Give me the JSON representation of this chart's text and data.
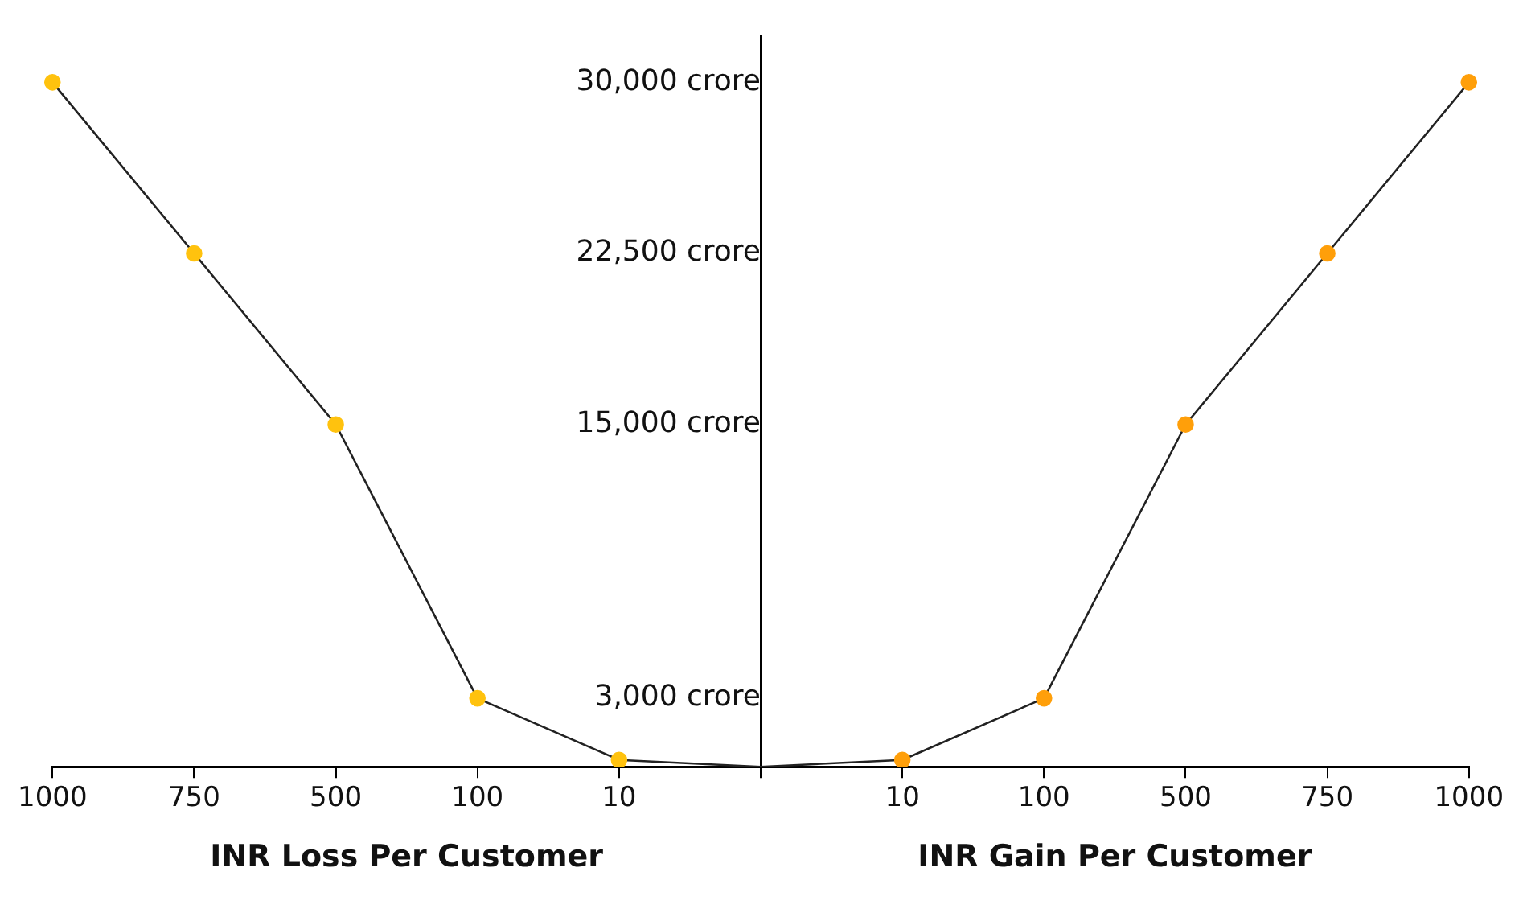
{
  "chart_data": {
    "type": "line",
    "categories": [
      "1000",
      "750",
      "500",
      "100",
      "10",
      null,
      "10",
      "100",
      "500",
      "750",
      "1000"
    ],
    "series": [
      {
        "color": "#ffc20e",
        "values": [
          30000,
          22500,
          15000,
          3000,
          300,
          0,
          null,
          null,
          null,
          null,
          null
        ]
      },
      {
        "color": "#ff9f0a",
        "values": [
          null,
          null,
          null,
          null,
          null,
          0,
          300,
          3000,
          15000,
          22500,
          30000
        ]
      }
    ],
    "ylim": [
      0,
      32000
    ],
    "yticks": [
      {
        "value": 3000,
        "label": "3,000 crore"
      },
      {
        "value": 15000,
        "label": "15,000 crore"
      },
      {
        "value": 22500,
        "label": "22,500 crore"
      },
      {
        "value": 30000,
        "label": "30,000 crore"
      }
    ],
    "annotations": [
      "INR Loss Per Customer",
      "INR Gain Per Customer"
    ],
    "grid": false,
    "legend": false,
    "marker": "circle",
    "line_style": "solid"
  }
}
